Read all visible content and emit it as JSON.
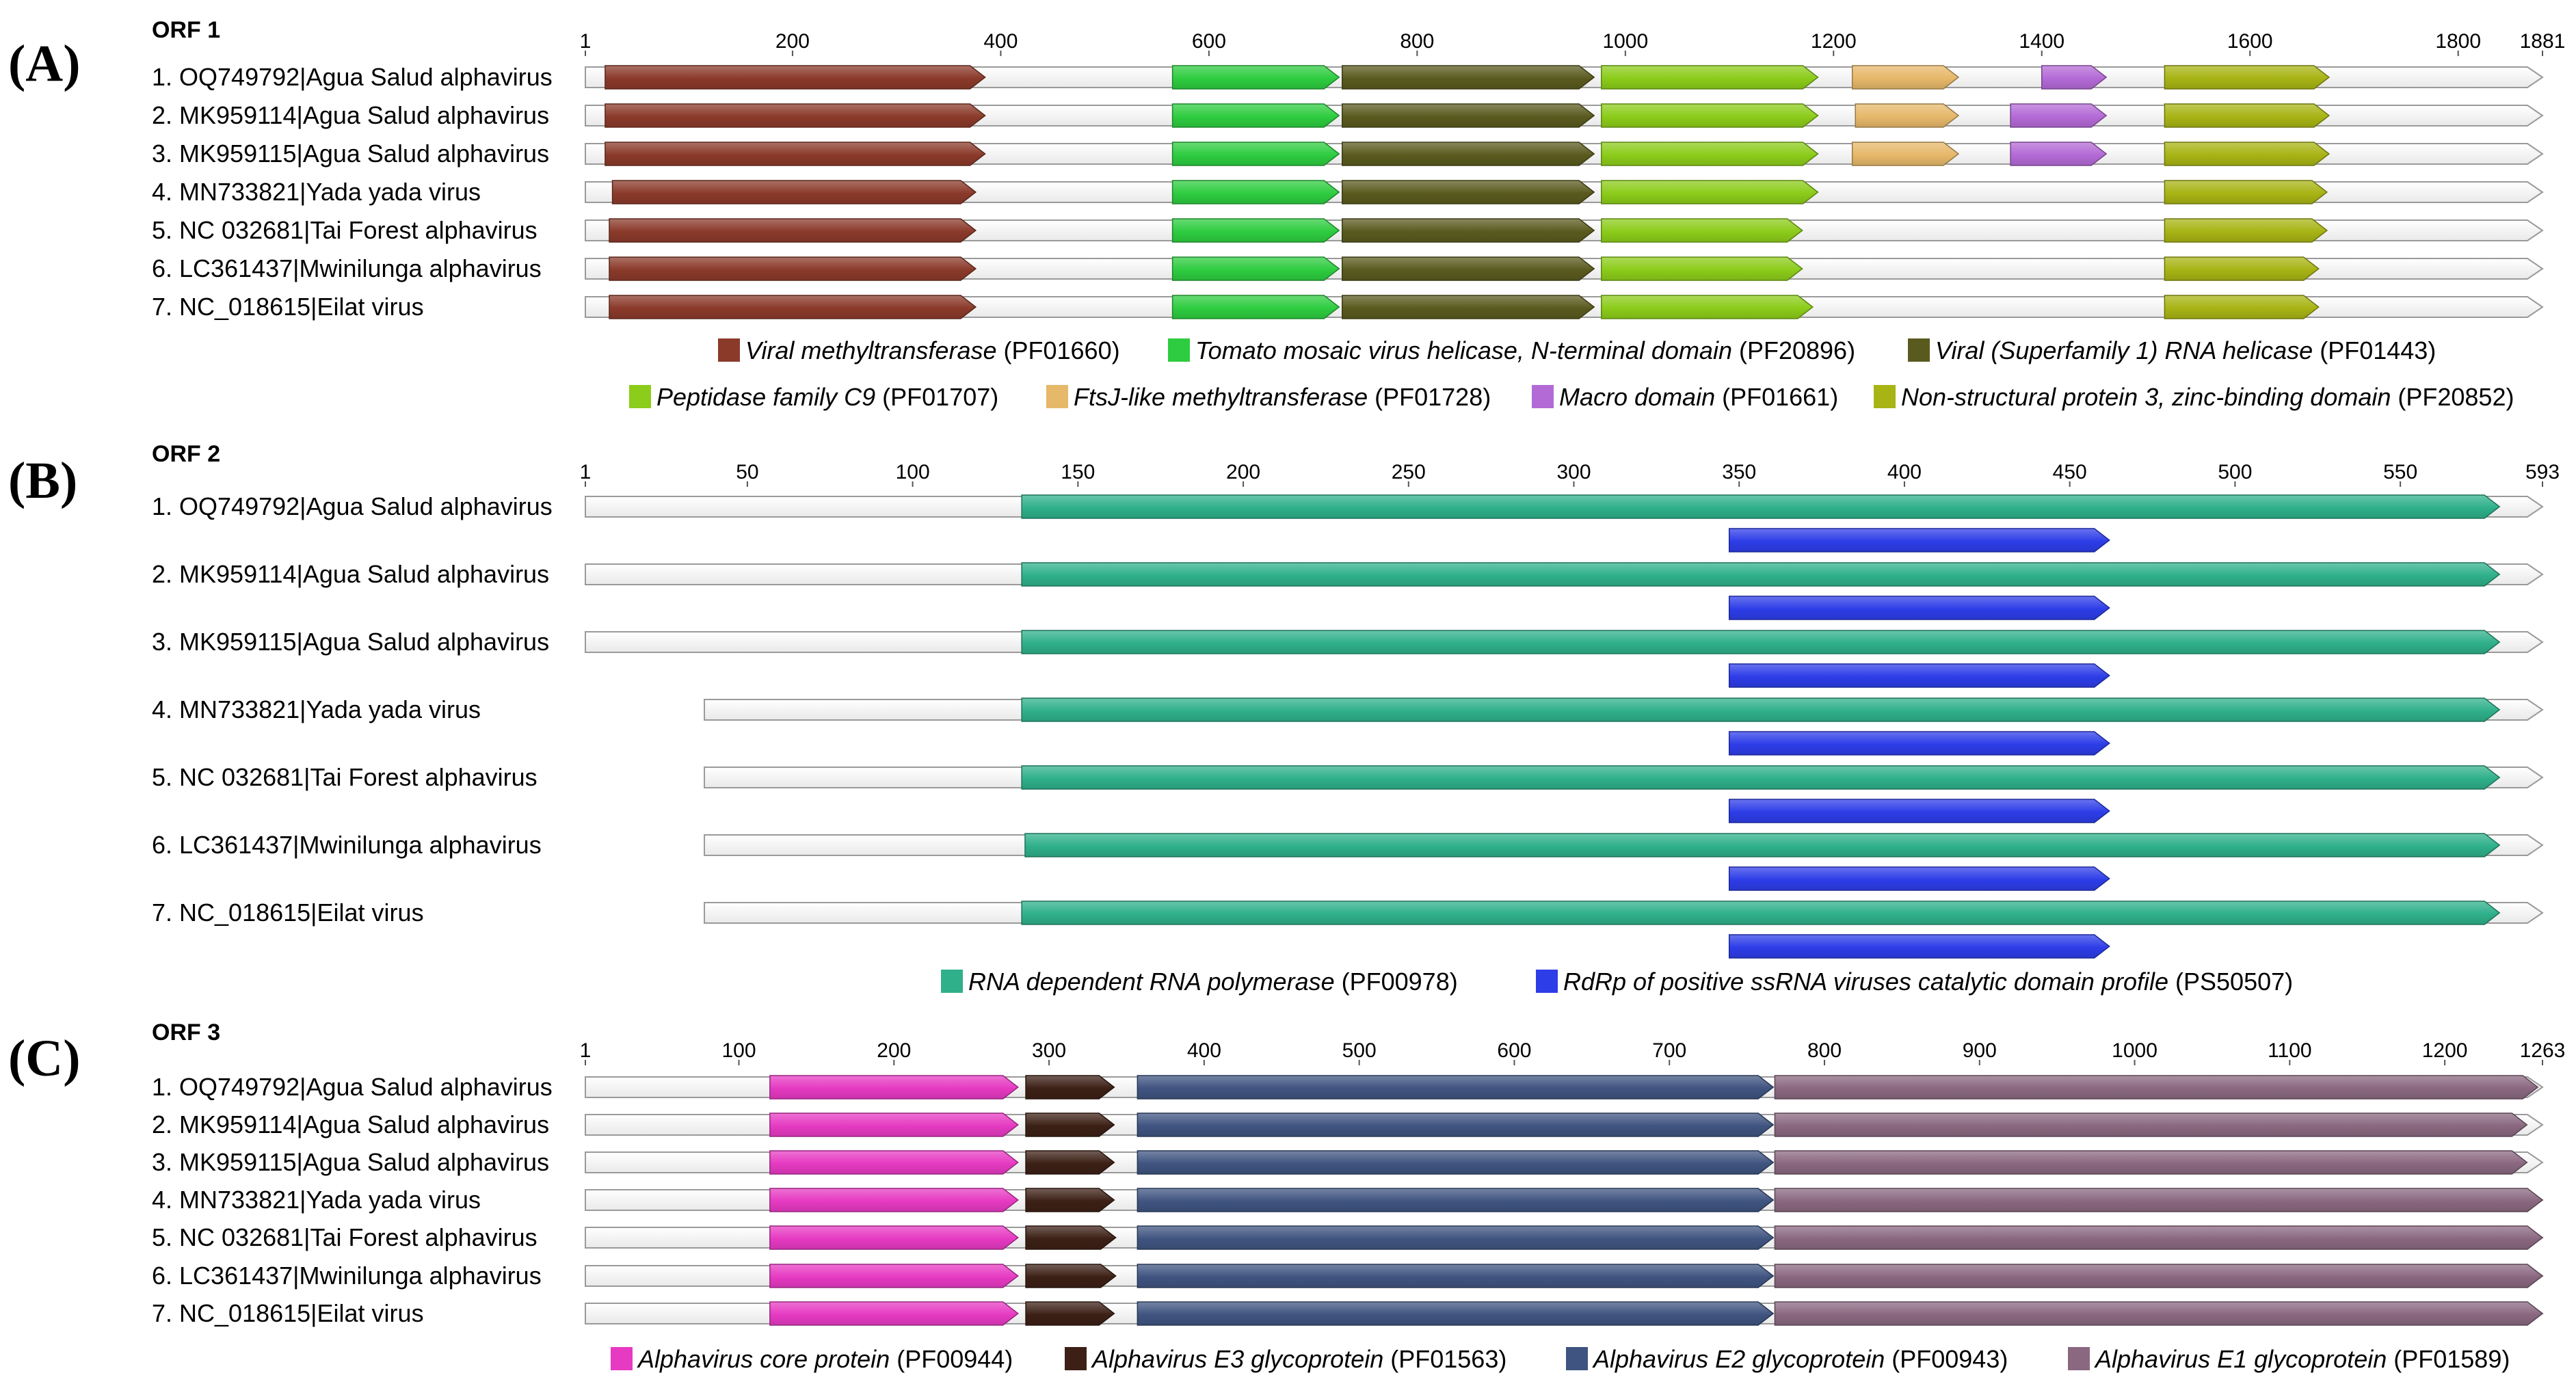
{
  "colors": {
    "methyltransferase": "#8b3a2a",
    "tmv_helicase": "#2ecc40",
    "rna_helicase": "#5a5a1f",
    "peptidase_c9": "#8ccc1a",
    "ftsj": "#e6b86a",
    "macro": "#b46ad6",
    "nsp3_zinc": "#a8b414",
    "rdrp": "#2fb08a",
    "rdrp_catalytic": "#2d3de8",
    "core": "#e63ac2",
    "e3": "#3c2016",
    "e2": "#3f5480",
    "e1": "#8a6880",
    "backbone_fill": "#ffffff",
    "backbone_stroke": "#9a9a9a"
  },
  "panels": [
    {
      "letter": "(A)",
      "orf_title": "ORF 1",
      "length": 1881,
      "ticks": [
        1,
        200,
        400,
        600,
        800,
        1000,
        1200,
        1400,
        1600,
        1800,
        1881
      ],
      "rows": [
        {
          "label": "1. OQ749792|Agua Salud alphavirus",
          "start": 1,
          "end": 1881,
          "domains": [
            {
              "key": "methyltransferase",
              "start": 20,
              "end": 385
            },
            {
              "key": "tmv_helicase",
              "start": 565,
              "end": 725
            },
            {
              "key": "rna_helicase",
              "start": 728,
              "end": 970
            },
            {
              "key": "peptidase_c9",
              "start": 977,
              "end": 1185
            },
            {
              "key": "ftsj",
              "start": 1218,
              "end": 1320
            },
            {
              "key": "macro",
              "start": 1400,
              "end": 1462
            },
            {
              "key": "nsp3_zinc",
              "start": 1518,
              "end": 1676
            }
          ]
        },
        {
          "label": "2. MK959114|Agua Salud alphavirus",
          "start": 1,
          "end": 1881,
          "domains": [
            {
              "key": "methyltransferase",
              "start": 20,
              "end": 385
            },
            {
              "key": "tmv_helicase",
              "start": 565,
              "end": 725
            },
            {
              "key": "rna_helicase",
              "start": 728,
              "end": 970
            },
            {
              "key": "peptidase_c9",
              "start": 977,
              "end": 1185
            },
            {
              "key": "ftsj",
              "start": 1221,
              "end": 1320
            },
            {
              "key": "macro",
              "start": 1370,
              "end": 1462
            },
            {
              "key": "nsp3_zinc",
              "start": 1518,
              "end": 1676
            }
          ]
        },
        {
          "label": "3. MK959115|Agua Salud alphavirus",
          "start": 1,
          "end": 1881,
          "domains": [
            {
              "key": "methyltransferase",
              "start": 20,
              "end": 385
            },
            {
              "key": "tmv_helicase",
              "start": 565,
              "end": 725
            },
            {
              "key": "rna_helicase",
              "start": 728,
              "end": 970
            },
            {
              "key": "peptidase_c9",
              "start": 977,
              "end": 1185
            },
            {
              "key": "ftsj",
              "start": 1218,
              "end": 1320
            },
            {
              "key": "macro",
              "start": 1370,
              "end": 1462
            },
            {
              "key": "nsp3_zinc",
              "start": 1518,
              "end": 1676
            }
          ]
        },
        {
          "label": "4. MN733821|Yada yada virus",
          "start": 1,
          "end": 1881,
          "domains": [
            {
              "key": "methyltransferase",
              "start": 27,
              "end": 376
            },
            {
              "key": "tmv_helicase",
              "start": 565,
              "end": 725
            },
            {
              "key": "rna_helicase",
              "start": 728,
              "end": 970
            },
            {
              "key": "peptidase_c9",
              "start": 977,
              "end": 1185
            },
            {
              "key": "nsp3_zinc",
              "start": 1518,
              "end": 1674
            }
          ]
        },
        {
          "label": "5. NC 032681|Tai Forest alphavirus",
          "start": 1,
          "end": 1881,
          "domains": [
            {
              "key": "methyltransferase",
              "start": 24,
              "end": 376
            },
            {
              "key": "tmv_helicase",
              "start": 565,
              "end": 725
            },
            {
              "key": "rna_helicase",
              "start": 728,
              "end": 970
            },
            {
              "key": "peptidase_c9",
              "start": 977,
              "end": 1170
            },
            {
              "key": "nsp3_zinc",
              "start": 1518,
              "end": 1674
            }
          ]
        },
        {
          "label": "6. LC361437|Mwinilunga alphavirus",
          "start": 1,
          "end": 1881,
          "domains": [
            {
              "key": "methyltransferase",
              "start": 24,
              "end": 376
            },
            {
              "key": "tmv_helicase",
              "start": 565,
              "end": 725
            },
            {
              "key": "rna_helicase",
              "start": 728,
              "end": 970
            },
            {
              "key": "peptidase_c9",
              "start": 977,
              "end": 1170
            },
            {
              "key": "nsp3_zinc",
              "start": 1518,
              "end": 1666
            }
          ]
        },
        {
          "label": "7. NC_018615|Eilat virus",
          "start": 1,
          "end": 1881,
          "domains": [
            {
              "key": "methyltransferase",
              "start": 24,
              "end": 376
            },
            {
              "key": "tmv_helicase",
              "start": 565,
              "end": 725
            },
            {
              "key": "rna_helicase",
              "start": 728,
              "end": 970
            },
            {
              "key": "peptidase_c9",
              "start": 977,
              "end": 1180
            },
            {
              "key": "nsp3_zinc",
              "start": 1518,
              "end": 1666
            }
          ]
        }
      ],
      "legend": [
        [
          {
            "key": "methyltransferase",
            "name": "Viral methyltransferase",
            "acc": "(PF01660)"
          },
          {
            "key": "tmv_helicase",
            "name": "Tomato mosaic virus helicase, N-terminal domain",
            "acc": "(PF20896)"
          },
          {
            "key": "rna_helicase",
            "name": "Viral (Superfamily 1) RNA helicase",
            "acc": "(PF01443)"
          }
        ],
        [
          {
            "key": "peptidase_c9",
            "name": "Peptidase family C9",
            "acc": "(PF01707)"
          },
          {
            "key": "ftsj",
            "name": "FtsJ-like methyltransferase",
            "acc": "(PF01728)"
          },
          {
            "key": "macro",
            "name": "Macro domain",
            "acc": "(PF01661)"
          },
          {
            "key": "nsp3_zinc",
            "name": "Non-structural protein 3, zinc-binding domain",
            "acc": "(PF20852)"
          }
        ]
      ]
    },
    {
      "letter": "(B)",
      "orf_title": "ORF 2",
      "length": 593,
      "ticks": [
        1,
        50,
        100,
        150,
        200,
        250,
        300,
        350,
        400,
        450,
        500,
        550,
        593
      ],
      "rows": [
        {
          "label": "1. OQ749792|Agua Salud alphavirus",
          "start": 1,
          "end": 593,
          "domains": [
            {
              "key": "rdrp",
              "start": 133,
              "end": 580
            },
            {
              "key": "rdrp_catalytic",
              "start": 347,
              "end": 462
            }
          ]
        },
        {
          "label": "2. MK959114|Agua Salud alphavirus",
          "start": 1,
          "end": 593,
          "domains": [
            {
              "key": "rdrp",
              "start": 133,
              "end": 580
            },
            {
              "key": "rdrp_catalytic",
              "start": 347,
              "end": 462
            }
          ]
        },
        {
          "label": "3. MK959115|Agua Salud alphavirus",
          "start": 1,
          "end": 593,
          "domains": [
            {
              "key": "rdrp",
              "start": 133,
              "end": 580
            },
            {
              "key": "rdrp_catalytic",
              "start": 347,
              "end": 462
            }
          ]
        },
        {
          "label": "4. MN733821|Yada yada virus",
          "start": 37,
          "end": 593,
          "domains": [
            {
              "key": "rdrp",
              "start": 133,
              "end": 580
            },
            {
              "key": "rdrp_catalytic",
              "start": 347,
              "end": 462
            }
          ]
        },
        {
          "label": "5. NC 032681|Tai Forest alphavirus",
          "start": 37,
          "end": 593,
          "domains": [
            {
              "key": "rdrp",
              "start": 133,
              "end": 580
            },
            {
              "key": "rdrp_catalytic",
              "start": 347,
              "end": 462
            }
          ]
        },
        {
          "label": "6. LC361437|Mwinilunga alphavirus",
          "start": 37,
          "end": 593,
          "domains": [
            {
              "key": "rdrp",
              "start": 134,
              "end": 580
            },
            {
              "key": "rdrp_catalytic",
              "start": 347,
              "end": 462
            }
          ]
        },
        {
          "label": "7. NC_018615|Eilat virus",
          "start": 37,
          "end": 593,
          "domains": [
            {
              "key": "rdrp",
              "start": 133,
              "end": 580
            },
            {
              "key": "rdrp_catalytic",
              "start": 347,
              "end": 462
            }
          ]
        }
      ],
      "legend": [
        [
          {
            "key": "rdrp",
            "name": "RNA dependent RNA polymerase",
            "acc": "(PF00978)"
          },
          {
            "key": "rdrp_catalytic",
            "name": "RdRp of positive ssRNA viruses catalytic domain profile",
            "acc": "(PS50507)"
          }
        ]
      ]
    },
    {
      "letter": "(C)",
      "orf_title": "ORF 3",
      "length": 1263,
      "ticks": [
        1,
        100,
        200,
        300,
        400,
        500,
        600,
        700,
        800,
        900,
        1000,
        1100,
        1200,
        1263
      ],
      "rows": [
        {
          "label": "1. OQ749792|Agua Salud alphavirus",
          "start": 1,
          "end": 1263,
          "domains": [
            {
              "key": "core",
              "start": 120,
              "end": 280
            },
            {
              "key": "e3",
              "start": 285,
              "end": 342
            },
            {
              "key": "e2",
              "start": 357,
              "end": 767
            },
            {
              "key": "e1",
              "start": 768,
              "end": 1260
            }
          ]
        },
        {
          "label": "2. MK959114|Agua Salud alphavirus",
          "start": 1,
          "end": 1263,
          "domains": [
            {
              "key": "core",
              "start": 120,
              "end": 280
            },
            {
              "key": "e3",
              "start": 285,
              "end": 342
            },
            {
              "key": "e2",
              "start": 357,
              "end": 767
            },
            {
              "key": "e1",
              "start": 768,
              "end": 1253
            }
          ]
        },
        {
          "label": "3. MK959115|Agua Salud alphavirus",
          "start": 1,
          "end": 1263,
          "domains": [
            {
              "key": "core",
              "start": 120,
              "end": 280
            },
            {
              "key": "e3",
              "start": 285,
              "end": 342
            },
            {
              "key": "e2",
              "start": 357,
              "end": 767
            },
            {
              "key": "e1",
              "start": 768,
              "end": 1253
            }
          ]
        },
        {
          "label": "4. MN733821|Yada yada virus",
          "start": 1,
          "end": 1263,
          "domains": [
            {
              "key": "core",
              "start": 120,
              "end": 280
            },
            {
              "key": "e3",
              "start": 285,
              "end": 342
            },
            {
              "key": "e2",
              "start": 357,
              "end": 767
            },
            {
              "key": "e1",
              "start": 768,
              "end": 1263
            }
          ]
        },
        {
          "label": "5. NC 032681|Tai Forest alphavirus",
          "start": 1,
          "end": 1263,
          "domains": [
            {
              "key": "core",
              "start": 120,
              "end": 280
            },
            {
              "key": "e3",
              "start": 285,
              "end": 343
            },
            {
              "key": "e2",
              "start": 357,
              "end": 767
            },
            {
              "key": "e1",
              "start": 768,
              "end": 1263
            }
          ]
        },
        {
          "label": "6. LC361437|Mwinilunga alphavirus",
          "start": 1,
          "end": 1263,
          "domains": [
            {
              "key": "core",
              "start": 120,
              "end": 280
            },
            {
              "key": "e3",
              "start": 285,
              "end": 343
            },
            {
              "key": "e2",
              "start": 357,
              "end": 767
            },
            {
              "key": "e1",
              "start": 768,
              "end": 1263
            }
          ]
        },
        {
          "label": "7. NC_018615|Eilat virus",
          "start": 1,
          "end": 1263,
          "domains": [
            {
              "key": "core",
              "start": 120,
              "end": 280
            },
            {
              "key": "e3",
              "start": 285,
              "end": 342
            },
            {
              "key": "e2",
              "start": 357,
              "end": 767
            },
            {
              "key": "e1",
              "start": 768,
              "end": 1263
            }
          ]
        }
      ],
      "legend": [
        [
          {
            "key": "core",
            "name": "Alphavirus core protein",
            "acc": "(PF00944)"
          },
          {
            "key": "e3",
            "name": "Alphavirus E3 glycoprotein",
            "acc": "(PF01563)"
          },
          {
            "key": "e2",
            "name": "Alphavirus E2 glycoprotein",
            "acc": "(PF00943)"
          },
          {
            "key": "e1",
            "name": "Alphavirus E1 glycoprotein",
            "acc": "(PF01589)"
          }
        ]
      ]
    }
  ]
}
